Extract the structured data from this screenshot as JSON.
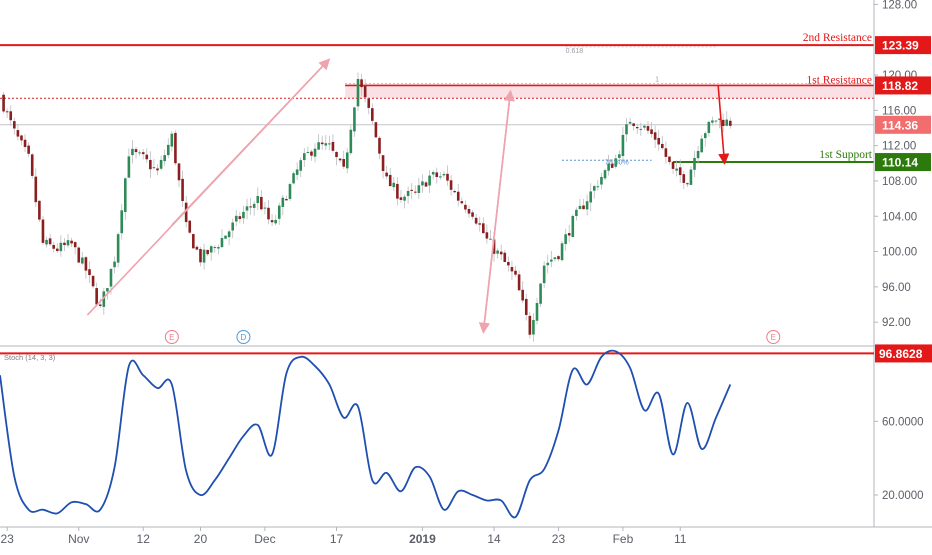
{
  "chart_data": [
    {
      "type": "candlestick",
      "y_ticks": [
        "128.00",
        "120.00",
        "116.00",
        "112.00",
        "108.00",
        "104.00",
        "100.00",
        "96.00",
        "92.00"
      ],
      "ylim": [
        89.3,
        128.5
      ],
      "levels": [
        {
          "name": "2nd Resistance",
          "value": "123.39",
          "color": "#e31919"
        },
        {
          "name": "1st Resistance",
          "value": "118.82",
          "color": "#e31919"
        },
        {
          "name": "1st Support",
          "value": "110.14",
          "color": "#2b7a0b"
        }
      ],
      "last_price": {
        "value": "114.36",
        "color": "#f26d6d"
      },
      "fib_labels": [
        "0.618",
        "1",
        "78.60%"
      ],
      "event_markers": [
        {
          "label": "E",
          "x": 24,
          "color": "#ef7b8a"
        },
        {
          "label": "D",
          "x": 34,
          "color": "#4a9ad8"
        },
        {
          "label": "E",
          "x": 108,
          "color": "#ef7b8a"
        }
      ],
      "series": [
        {
          "name": "close",
          "x": [
            0,
            2,
            4,
            6,
            8,
            10,
            12,
            14,
            16,
            18,
            20,
            22,
            24,
            26,
            28,
            30,
            32,
            34,
            36,
            38,
            40,
            42,
            44,
            46,
            48,
            50,
            52,
            54,
            56,
            58,
            60,
            62,
            64,
            66,
            68,
            70,
            72,
            74,
            76,
            78,
            80,
            82,
            84,
            86,
            88,
            90,
            92,
            94,
            96,
            98,
            100,
            102
          ],
          "values": [
            117.6,
            113.5,
            110.5,
            100.9,
            100.3,
            100.8,
            97.9,
            93.5,
            99.3,
            111.3,
            110.5,
            109.0,
            113.0,
            102.7,
            99.2,
            100.5,
            102.4,
            104.4,
            106.0,
            102.8,
            106.5,
            110.0,
            112.0,
            111.8,
            109.0,
            119.6,
            114.6,
            108.0,
            106.2,
            106.5,
            108.5,
            108.5,
            106.0,
            104.5,
            101.3,
            99.3,
            96.9,
            91.0,
            98.5,
            99.8,
            103.4,
            106.0,
            108.5,
            110.5,
            115.0,
            114.0,
            112.5,
            109.0,
            108.2,
            113.3,
            115.0,
            114.6
          ]
        }
      ]
    },
    {
      "type": "line",
      "indicator_label": "Stoch (14, 3, 3)",
      "y_ticks": [
        "60.0000",
        "20.0000"
      ],
      "ylim": [
        2.6,
        100.9
      ],
      "level": {
        "value": "96.8628",
        "color": "#e31919"
      },
      "series": [
        {
          "name": "%K",
          "x": [
            0,
            2,
            4,
            6,
            8,
            10,
            12,
            14,
            16,
            18,
            20,
            22,
            24,
            26,
            28,
            30,
            32,
            34,
            36,
            38,
            40,
            42,
            44,
            46,
            48,
            50,
            52,
            54,
            56,
            58,
            60,
            62,
            64,
            66,
            68,
            70,
            72,
            74,
            76,
            78,
            80,
            82,
            84,
            86,
            88,
            90,
            92,
            94,
            96,
            98,
            100,
            102
          ],
          "values": [
            85,
            30,
            12,
            12,
            10,
            16,
            15,
            12,
            35,
            90,
            85,
            78,
            80,
            33,
            20,
            28,
            40,
            52,
            58,
            42,
            86,
            95,
            90,
            80,
            62,
            68,
            28,
            32,
            22,
            35,
            30,
            12,
            22,
            20,
            17,
            17,
            8,
            28,
            34,
            55,
            88,
            80,
            95,
            98,
            89,
            66,
            75,
            42,
            70,
            45,
            62,
            80
          ]
        }
      ]
    }
  ],
  "x_ticks": [
    {
      "label": "23",
      "x": 1,
      "bold": false
    },
    {
      "label": "Nov",
      "x": 11,
      "bold": false
    },
    {
      "label": "12",
      "x": 20,
      "bold": false
    },
    {
      "label": "20",
      "x": 28,
      "bold": false
    },
    {
      "label": "Dec",
      "x": 37,
      "bold": false
    },
    {
      "label": "17",
      "x": 47,
      "bold": false
    },
    {
      "label": "2019",
      "x": 59,
      "bold": true
    },
    {
      "label": "14",
      "x": 69,
      "bold": false
    },
    {
      "label": "23",
      "x": 78,
      "bold": false
    },
    {
      "label": "Feb",
      "x": 87,
      "bold": false
    },
    {
      "label": "11",
      "x": 95,
      "bold": false
    }
  ]
}
